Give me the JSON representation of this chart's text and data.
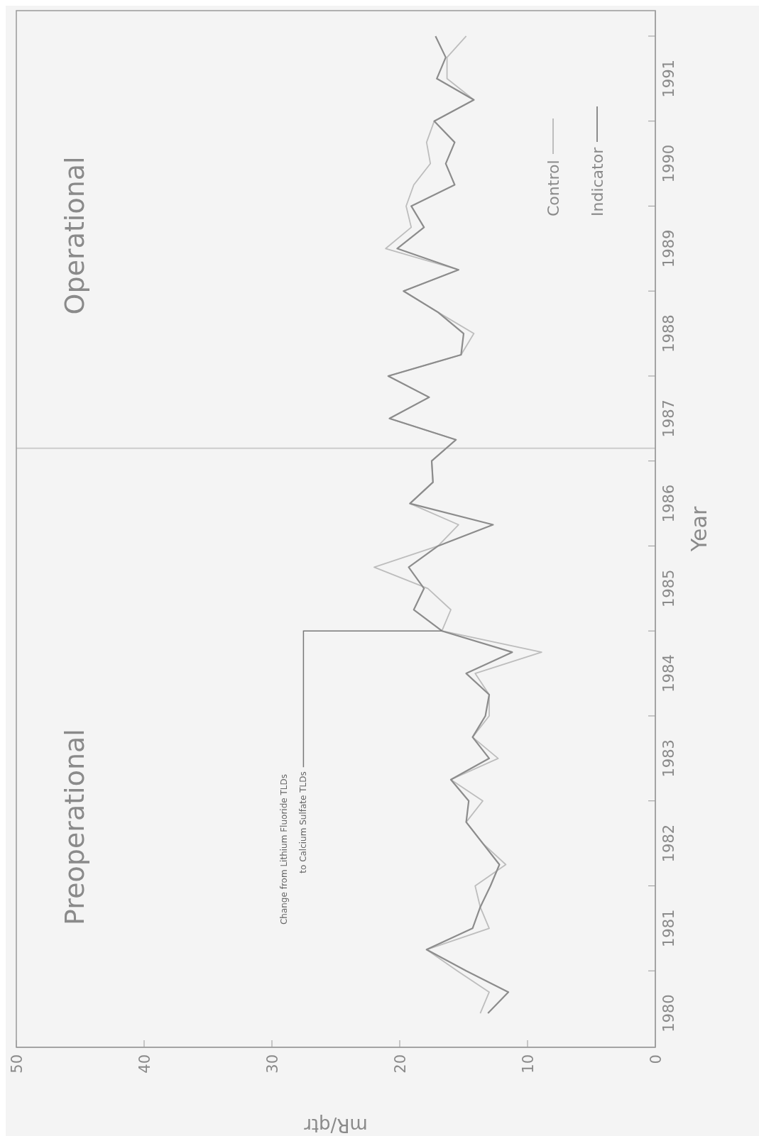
{
  "chart_data": {
    "type": "line",
    "xlabel": "mR/qtr",
    "ylabel": "Year",
    "series": [
      {
        "name": "Control",
        "color": "#bdbdbd",
        "x": [
          13.7,
          13.0,
          15.5,
          17.9,
          13.0,
          13.7,
          14.1,
          11.7,
          13.5,
          14.8,
          13.5,
          16.0,
          12.3,
          14.3,
          13.0,
          13.0,
          14.1,
          8.9,
          16.7,
          16.0,
          17.8,
          22.0,
          17.0,
          15.4,
          19.2,
          17.4,
          17.5,
          15.6,
          20.8,
          17.7,
          20.9,
          15.2,
          14.2,
          17.0,
          19.7,
          15.4,
          21.1,
          19.1,
          19.5,
          18.9,
          17.6,
          17.9,
          17.3,
          14.2,
          16.3,
          16.3,
          14.8
        ],
        "values": [
          1980.5,
          1980.75,
          1981,
          1981.25,
          1981.5,
          1981.75,
          1982,
          1982.25,
          1982.5,
          1982.75,
          1983,
          1983.25,
          1983.5,
          1983.75,
          1984,
          1984.25,
          1984.5,
          1984.75,
          1985,
          1985.25,
          1985.5,
          1985.75,
          1986,
          1986.25,
          1986.5,
          1986.75,
          1987,
          1987.25,
          1987.5,
          1987.75,
          1988,
          1988.25,
          1988.5,
          1988.75,
          1989,
          1989.25,
          1989.5,
          1989.75,
          1990,
          1990.25,
          1990.5,
          1990.75,
          1991,
          1991.25,
          1991.5,
          1991.75,
          1992
        ]
      },
      {
        "name": "Indicator",
        "color": "#8c8c8c",
        "x": [
          13.1,
          11.5,
          14.8,
          17.9,
          14.3,
          13.7,
          12.9,
          12.2,
          13.5,
          14.8,
          14.6,
          16.0,
          13.0,
          14.3,
          13.3,
          13.0,
          14.8,
          11.2,
          16.7,
          18.9,
          18.1,
          19.3,
          17.0,
          12.7,
          19.2,
          17.4,
          17.5,
          15.6,
          20.8,
          17.7,
          20.9,
          15.2,
          15.0,
          17.0,
          19.7,
          15.4,
          20.2,
          18.1,
          19.1,
          15.7,
          16.4,
          15.7,
          17.3,
          14.2,
          17.1,
          16.4,
          17.2
        ],
        "values": [
          1980.5,
          1980.75,
          1981,
          1981.25,
          1981.5,
          1981.75,
          1982,
          1982.25,
          1982.5,
          1982.75,
          1983,
          1983.25,
          1983.5,
          1983.75,
          1984,
          1984.25,
          1984.5,
          1984.75,
          1985,
          1985.25,
          1985.5,
          1985.75,
          1986,
          1986.25,
          1986.5,
          1986.75,
          1987,
          1987.25,
          1987.5,
          1987.75,
          1988,
          1988.25,
          1988.5,
          1988.75,
          1989,
          1989.25,
          1989.5,
          1989.75,
          1990,
          1990.25,
          1990.5,
          1990.75,
          1991,
          1991.25,
          1991.5,
          1991.75,
          1992
        ]
      }
    ],
    "xlim": [
      50,
      0
    ],
    "xticks": [
      50,
      40,
      30,
      20,
      10,
      0
    ],
    "ylim": [
      1980.1,
      1992.3
    ],
    "yticks": [
      {
        "value": 1980.5,
        "label": "1980"
      },
      {
        "value": 1981,
        "label": null
      },
      {
        "value": 1981.5,
        "label": "1981"
      },
      {
        "value": 1982,
        "label": null
      },
      {
        "value": 1982.5,
        "label": "1982"
      },
      {
        "value": 1983,
        "label": null
      },
      {
        "value": 1983.5,
        "label": "1983"
      },
      {
        "value": 1984,
        "label": null
      },
      {
        "value": 1984.5,
        "label": "1984"
      },
      {
        "value": 1985,
        "label": null
      },
      {
        "value": 1985.5,
        "label": "1985"
      },
      {
        "value": 1986,
        "label": null
      },
      {
        "value": 1986.5,
        "label": "1986"
      },
      {
        "value": 1987,
        "label": null
      },
      {
        "value": 1987.5,
        "label": "1987"
      },
      {
        "value": 1988,
        "label": null
      },
      {
        "value": 1988.5,
        "label": "1988"
      },
      {
        "value": 1989,
        "label": null
      },
      {
        "value": 1989.5,
        "label": "1989"
      },
      {
        "value": 1990,
        "label": null
      },
      {
        "value": 1990.5,
        "label": "1990"
      },
      {
        "value": 1991,
        "label": null
      },
      {
        "value": 1991.5,
        "label": "1991"
      },
      {
        "value": 1992,
        "label": null
      }
    ],
    "ref_lines": [
      {
        "axis": "y",
        "value": 1987.15,
        "color": "#cccccc"
      }
    ],
    "annotations": [
      "Preoperational",
      "Operational",
      {
        "text": "Change from Lithium Fluoride TLDs to Calcium Sulfate TLDs",
        "x": 16.7,
        "y": 1985
      }
    ],
    "legend": "top right",
    "marker": "none"
  }
}
